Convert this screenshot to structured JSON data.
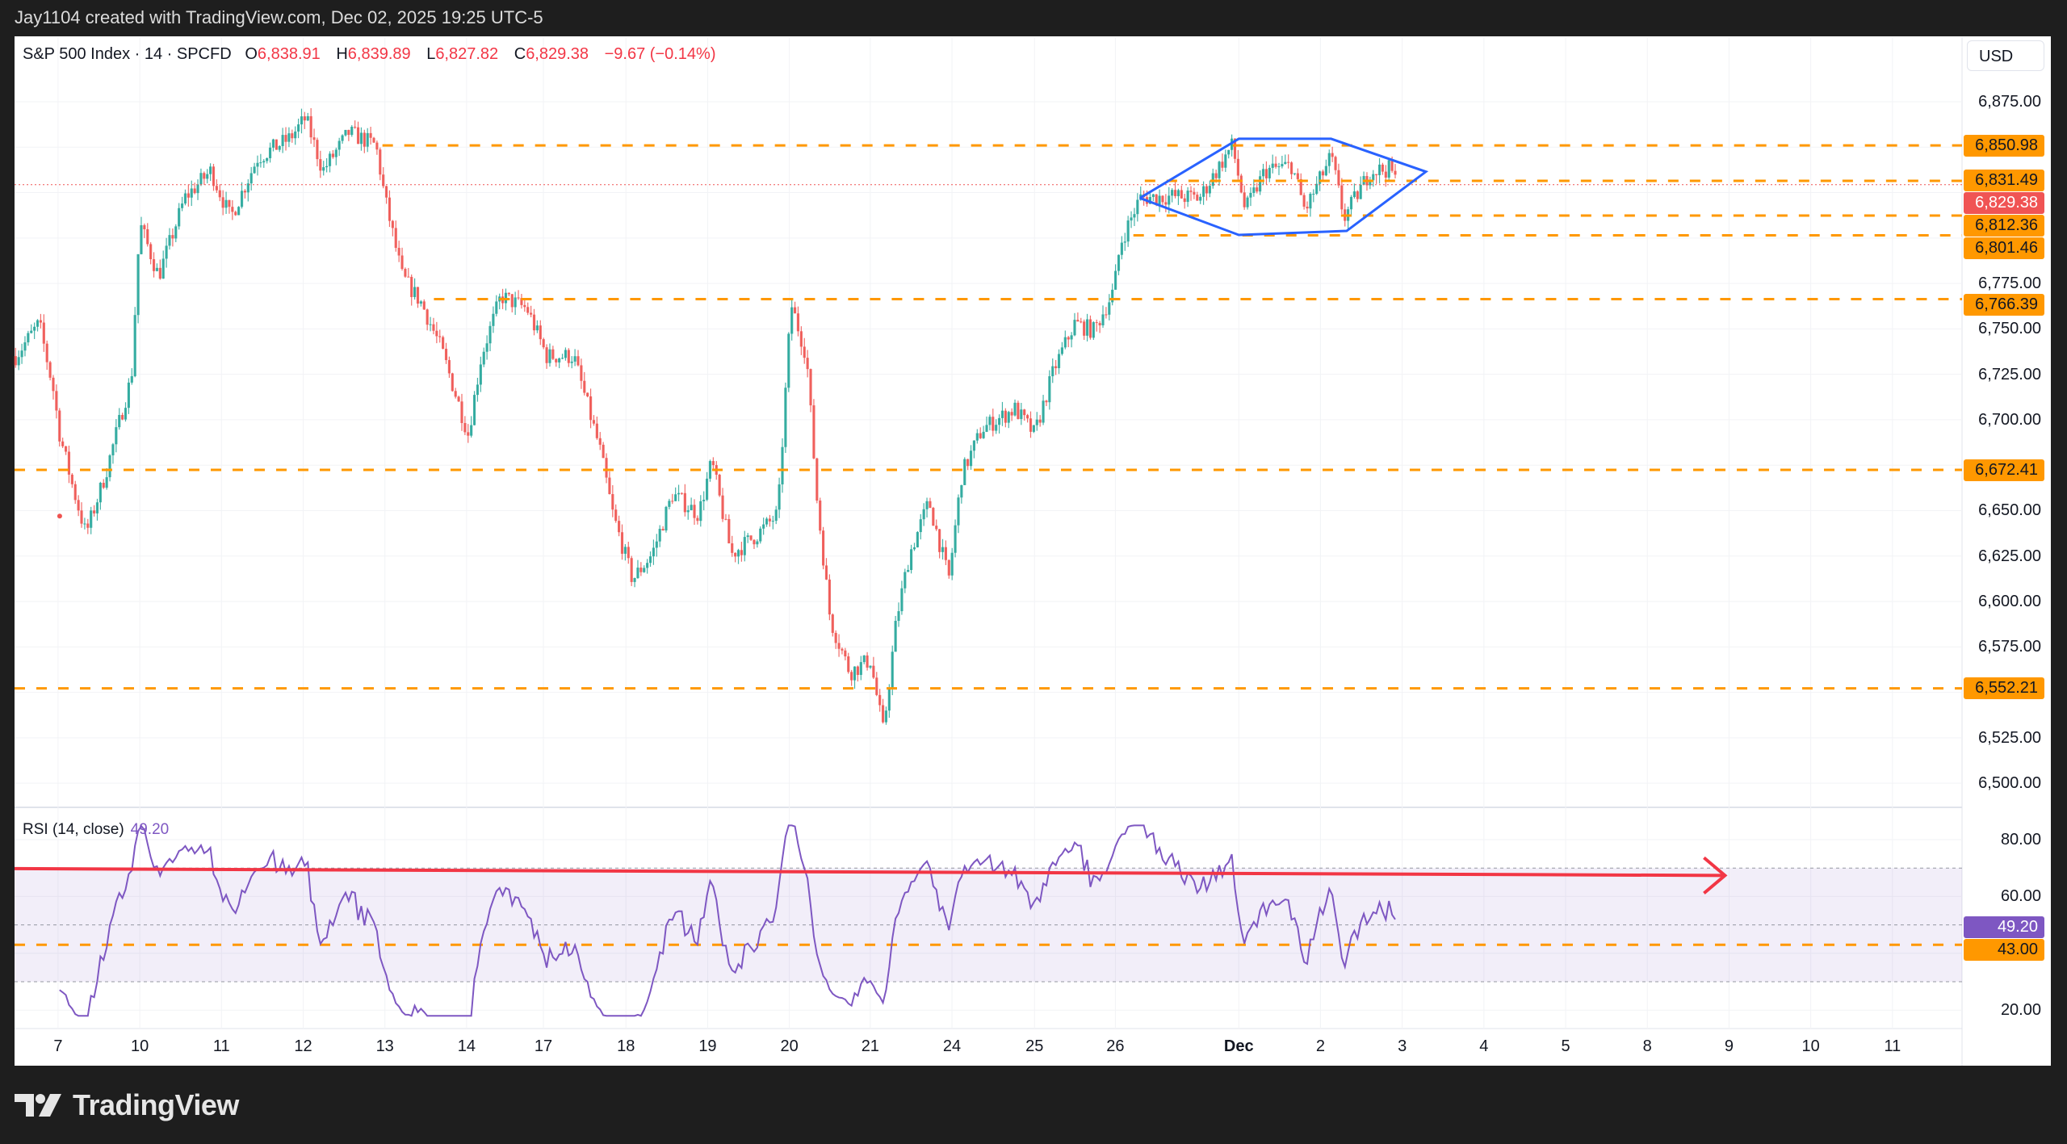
{
  "header": {
    "attribution": "Jay1104 created with TradingView.com, Dec 02, 2025 19:25 UTC-5"
  },
  "legend": {
    "symbol": "S&P 500 Index · 14 · SPCFD",
    "open_key": "O",
    "open": "6,838.91",
    "high_key": "H",
    "high": "6,839.89",
    "low_key": "L",
    "low": "6,827.82",
    "close_key": "C",
    "close": "6,829.38",
    "change": "−9.67 (−0.14%)"
  },
  "currency_button": "USD",
  "colors": {
    "up": "#26a69a",
    "down": "#ef5350",
    "level": "#ff9800",
    "pattern": "#2962ff",
    "rsi": "#7e57c2",
    "trend": "#f23645",
    "last": "#f05454"
  },
  "price_axis": {
    "ticks": [
      {
        "value": 6875,
        "label": "6,875.00"
      },
      {
        "value": 6775,
        "label": "6,775.00"
      },
      {
        "value": 6750,
        "label": "6,750.00"
      },
      {
        "value": 6725,
        "label": "6,725.00"
      },
      {
        "value": 6700,
        "label": "6,700.00"
      },
      {
        "value": 6650,
        "label": "6,650.00"
      },
      {
        "value": 6625,
        "label": "6,625.00"
      },
      {
        "value": 6600,
        "label": "6,600.00"
      },
      {
        "value": 6575,
        "label": "6,575.00"
      },
      {
        "value": 6525,
        "label": "6,525.00"
      },
      {
        "value": 6500,
        "label": "6,500.00"
      }
    ],
    "grid_values": [
      6875,
      6850,
      6825,
      6800,
      6775,
      6750,
      6725,
      6700,
      6675,
      6650,
      6625,
      6600,
      6575,
      6550,
      6525,
      6500
    ]
  },
  "levels": [
    {
      "value": 6850.98,
      "label": "6,850.98",
      "from_session": 3.97
    },
    {
      "value": 6831.49,
      "label": "6,831.49",
      "from_session": 13.3
    },
    {
      "value": 6812.36,
      "label": "6,812.36",
      "from_session": 13.3
    },
    {
      "value": 6801.46,
      "label": "6,801.46",
      "from_session": 13.16
    },
    {
      "value": 6766.39,
      "label": "6,766.39",
      "from_session": 4.6
    },
    {
      "value": 6672.41,
      "label": "6,672.41",
      "from_session": -0.6
    },
    {
      "value": 6552.21,
      "label": "6,552.21",
      "from_session": -0.6
    }
  ],
  "last_price": {
    "value": 6829.38,
    "label": "6,829.38"
  },
  "time_axis": [
    {
      "s": 0,
      "label": "7"
    },
    {
      "s": 1,
      "label": "10"
    },
    {
      "s": 2,
      "label": "11"
    },
    {
      "s": 3,
      "label": "12"
    },
    {
      "s": 4,
      "label": "13"
    },
    {
      "s": 5,
      "label": "14"
    },
    {
      "s": 5.94,
      "label": "17"
    },
    {
      "s": 6.95,
      "label": "18"
    },
    {
      "s": 7.95,
      "label": "19"
    },
    {
      "s": 8.95,
      "label": "20"
    },
    {
      "s": 9.94,
      "label": "21"
    },
    {
      "s": 10.94,
      "label": "24"
    },
    {
      "s": 11.95,
      "label": "25"
    },
    {
      "s": 12.94,
      "label": "26"
    },
    {
      "s": 14.45,
      "label": "Dec",
      "bold": true
    },
    {
      "s": 15.45,
      "label": "2"
    },
    {
      "s": 16.45,
      "label": "3"
    },
    {
      "s": 17.45,
      "label": "4"
    },
    {
      "s": 18.45,
      "label": "5"
    },
    {
      "s": 19.45,
      "label": "8"
    },
    {
      "s": 20.45,
      "label": "9"
    },
    {
      "s": 21.45,
      "label": "10"
    },
    {
      "s": 22.45,
      "label": "11"
    }
  ],
  "rsi": {
    "title": "RSI (14, close)",
    "value": "49.20",
    "axis": [
      {
        "value": 80,
        "label": "80.00"
      },
      {
        "value": 60,
        "label": "60.00"
      },
      {
        "value": 20,
        "label": "20.00"
      }
    ],
    "band": [
      30,
      70
    ],
    "middle": 50,
    "level": {
      "value": 43,
      "label": "43.00"
    },
    "trendline": {
      "from": {
        "s": -0.6,
        "rsi": 69.8
      },
      "to": {
        "s": 20.4,
        "rsi": 67.4
      }
    }
  },
  "chart_data": {
    "type": "candlestick",
    "title": "S&P 500 Index · 14 · SPCFD",
    "interval_minutes": 14,
    "ylim": [
      6490,
      6890
    ],
    "price_path": [
      [
        -0.52,
        6735
      ],
      [
        -0.23,
        6753
      ],
      [
        -0.06,
        6717
      ],
      [
        0.02,
        6692
      ],
      [
        0.18,
        6663
      ],
      [
        0.34,
        6637
      ],
      [
        0.58,
        6670
      ],
      [
        0.9,
        6724
      ],
      [
        1.0,
        6808
      ],
      [
        1.23,
        6779
      ],
      [
        1.55,
        6822
      ],
      [
        1.87,
        6837
      ],
      [
        2.11,
        6811
      ],
      [
        2.44,
        6844
      ],
      [
        2.84,
        6855
      ],
      [
        3.03,
        6866
      ],
      [
        3.24,
        6837
      ],
      [
        3.56,
        6858
      ],
      [
        3.89,
        6851
      ],
      [
        4.0,
        6822
      ],
      [
        4.21,
        6779
      ],
      [
        4.45,
        6764
      ],
      [
        4.69,
        6739
      ],
      [
        5.02,
        6692
      ],
      [
        5.18,
        6735
      ],
      [
        5.42,
        6768
      ],
      [
        5.74,
        6761
      ],
      [
        5.98,
        6735
      ],
      [
        6.31,
        6735
      ],
      [
        6.63,
        6684
      ],
      [
        6.79,
        6648
      ],
      [
        7.03,
        6612
      ],
      [
        7.27,
        6626
      ],
      [
        7.52,
        6659
      ],
      [
        7.84,
        6648
      ],
      [
        8.0,
        6677
      ],
      [
        8.24,
        6626
      ],
      [
        8.56,
        6637
      ],
      [
        8.81,
        6648
      ],
      [
        8.97,
        6764
      ],
      [
        9.16,
        6735
      ],
      [
        9.29,
        6655
      ],
      [
        9.45,
        6590
      ],
      [
        9.69,
        6561
      ],
      [
        9.94,
        6568
      ],
      [
        10.1,
        6528
      ],
      [
        10.26,
        6590
      ],
      [
        10.42,
        6626
      ],
      [
        10.66,
        6655
      ],
      [
        10.9,
        6612
      ],
      [
        11.06,
        6670
      ],
      [
        11.31,
        6695
      ],
      [
        11.71,
        6706
      ],
      [
        11.95,
        6692
      ],
      [
        12.19,
        6728
      ],
      [
        12.44,
        6753
      ],
      [
        12.68,
        6749
      ],
      [
        12.92,
        6771
      ],
      [
        13.0,
        6797
      ],
      [
        13.24,
        6822
      ],
      [
        13.65,
        6823
      ],
      [
        13.97,
        6822
      ],
      [
        14.37,
        6851
      ],
      [
        14.53,
        6815
      ],
      [
        14.77,
        6837
      ],
      [
        15.1,
        6840
      ],
      [
        15.26,
        6815
      ],
      [
        15.58,
        6845
      ],
      [
        15.74,
        6811
      ],
      [
        16.06,
        6837
      ],
      [
        16.31,
        6838
      ],
      [
        16.39,
        6829
      ]
    ],
    "pattern": [
      [
        13.24,
        6822
      ],
      [
        14.45,
        6854.6
      ],
      [
        15.58,
        6854.6
      ],
      [
        16.74,
        6836.5
      ],
      [
        15.77,
        6803.9
      ],
      [
        14.45,
        6801.7
      ],
      [
        13.24,
        6822
      ]
    ],
    "marker": {
      "s": 0.02,
      "price": 6647
    }
  }
}
